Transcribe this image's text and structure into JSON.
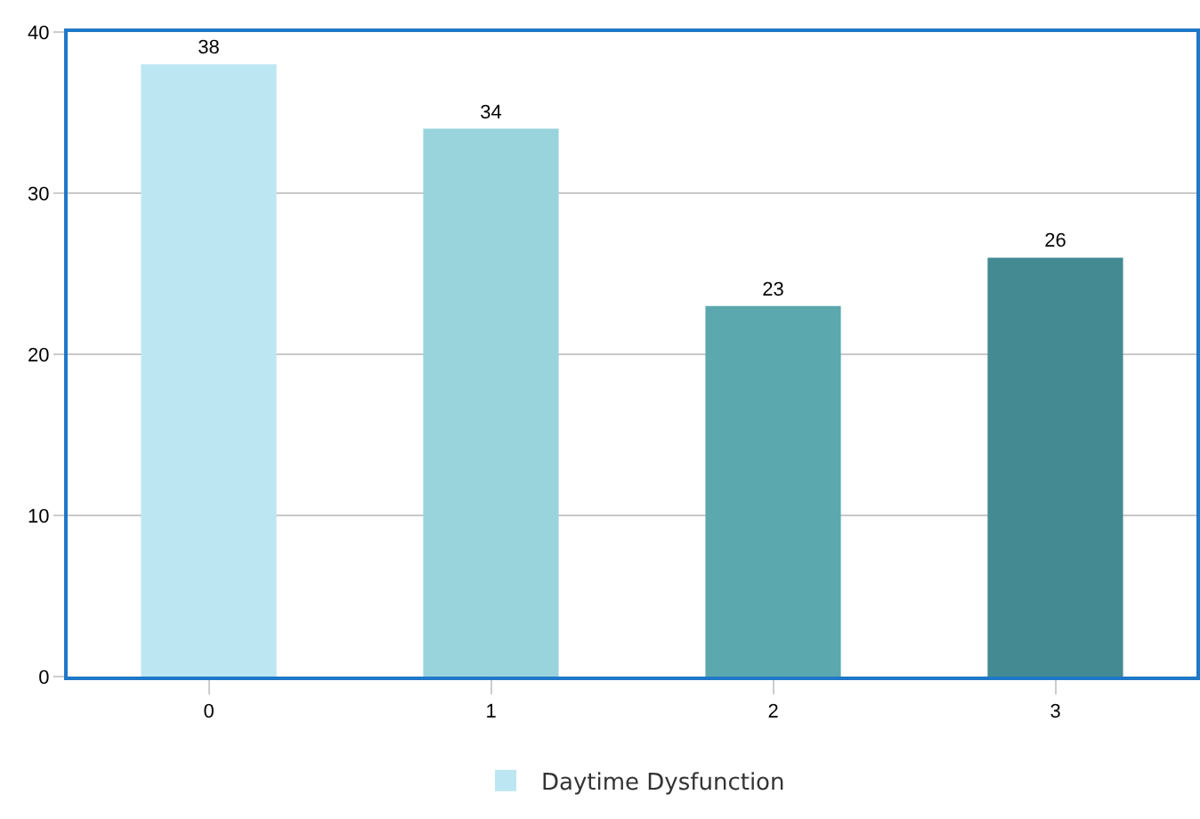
{
  "chart_data": {
    "type": "bar",
    "categories": [
      "0",
      "1",
      "2",
      "3"
    ],
    "series": [
      {
        "name": "Daytime Dysfunction",
        "colors": [
          "#bce6f2",
          "#99d4dc",
          "#5ba8ae",
          "#438a93"
        ],
        "values": [
          38,
          34,
          23,
          26
        ]
      }
    ],
    "ylim": [
      0,
      40
    ],
    "yticks": [
      0,
      10,
      20,
      30,
      40
    ],
    "grid": "y",
    "legend": "bottom",
    "data_labels": true
  }
}
